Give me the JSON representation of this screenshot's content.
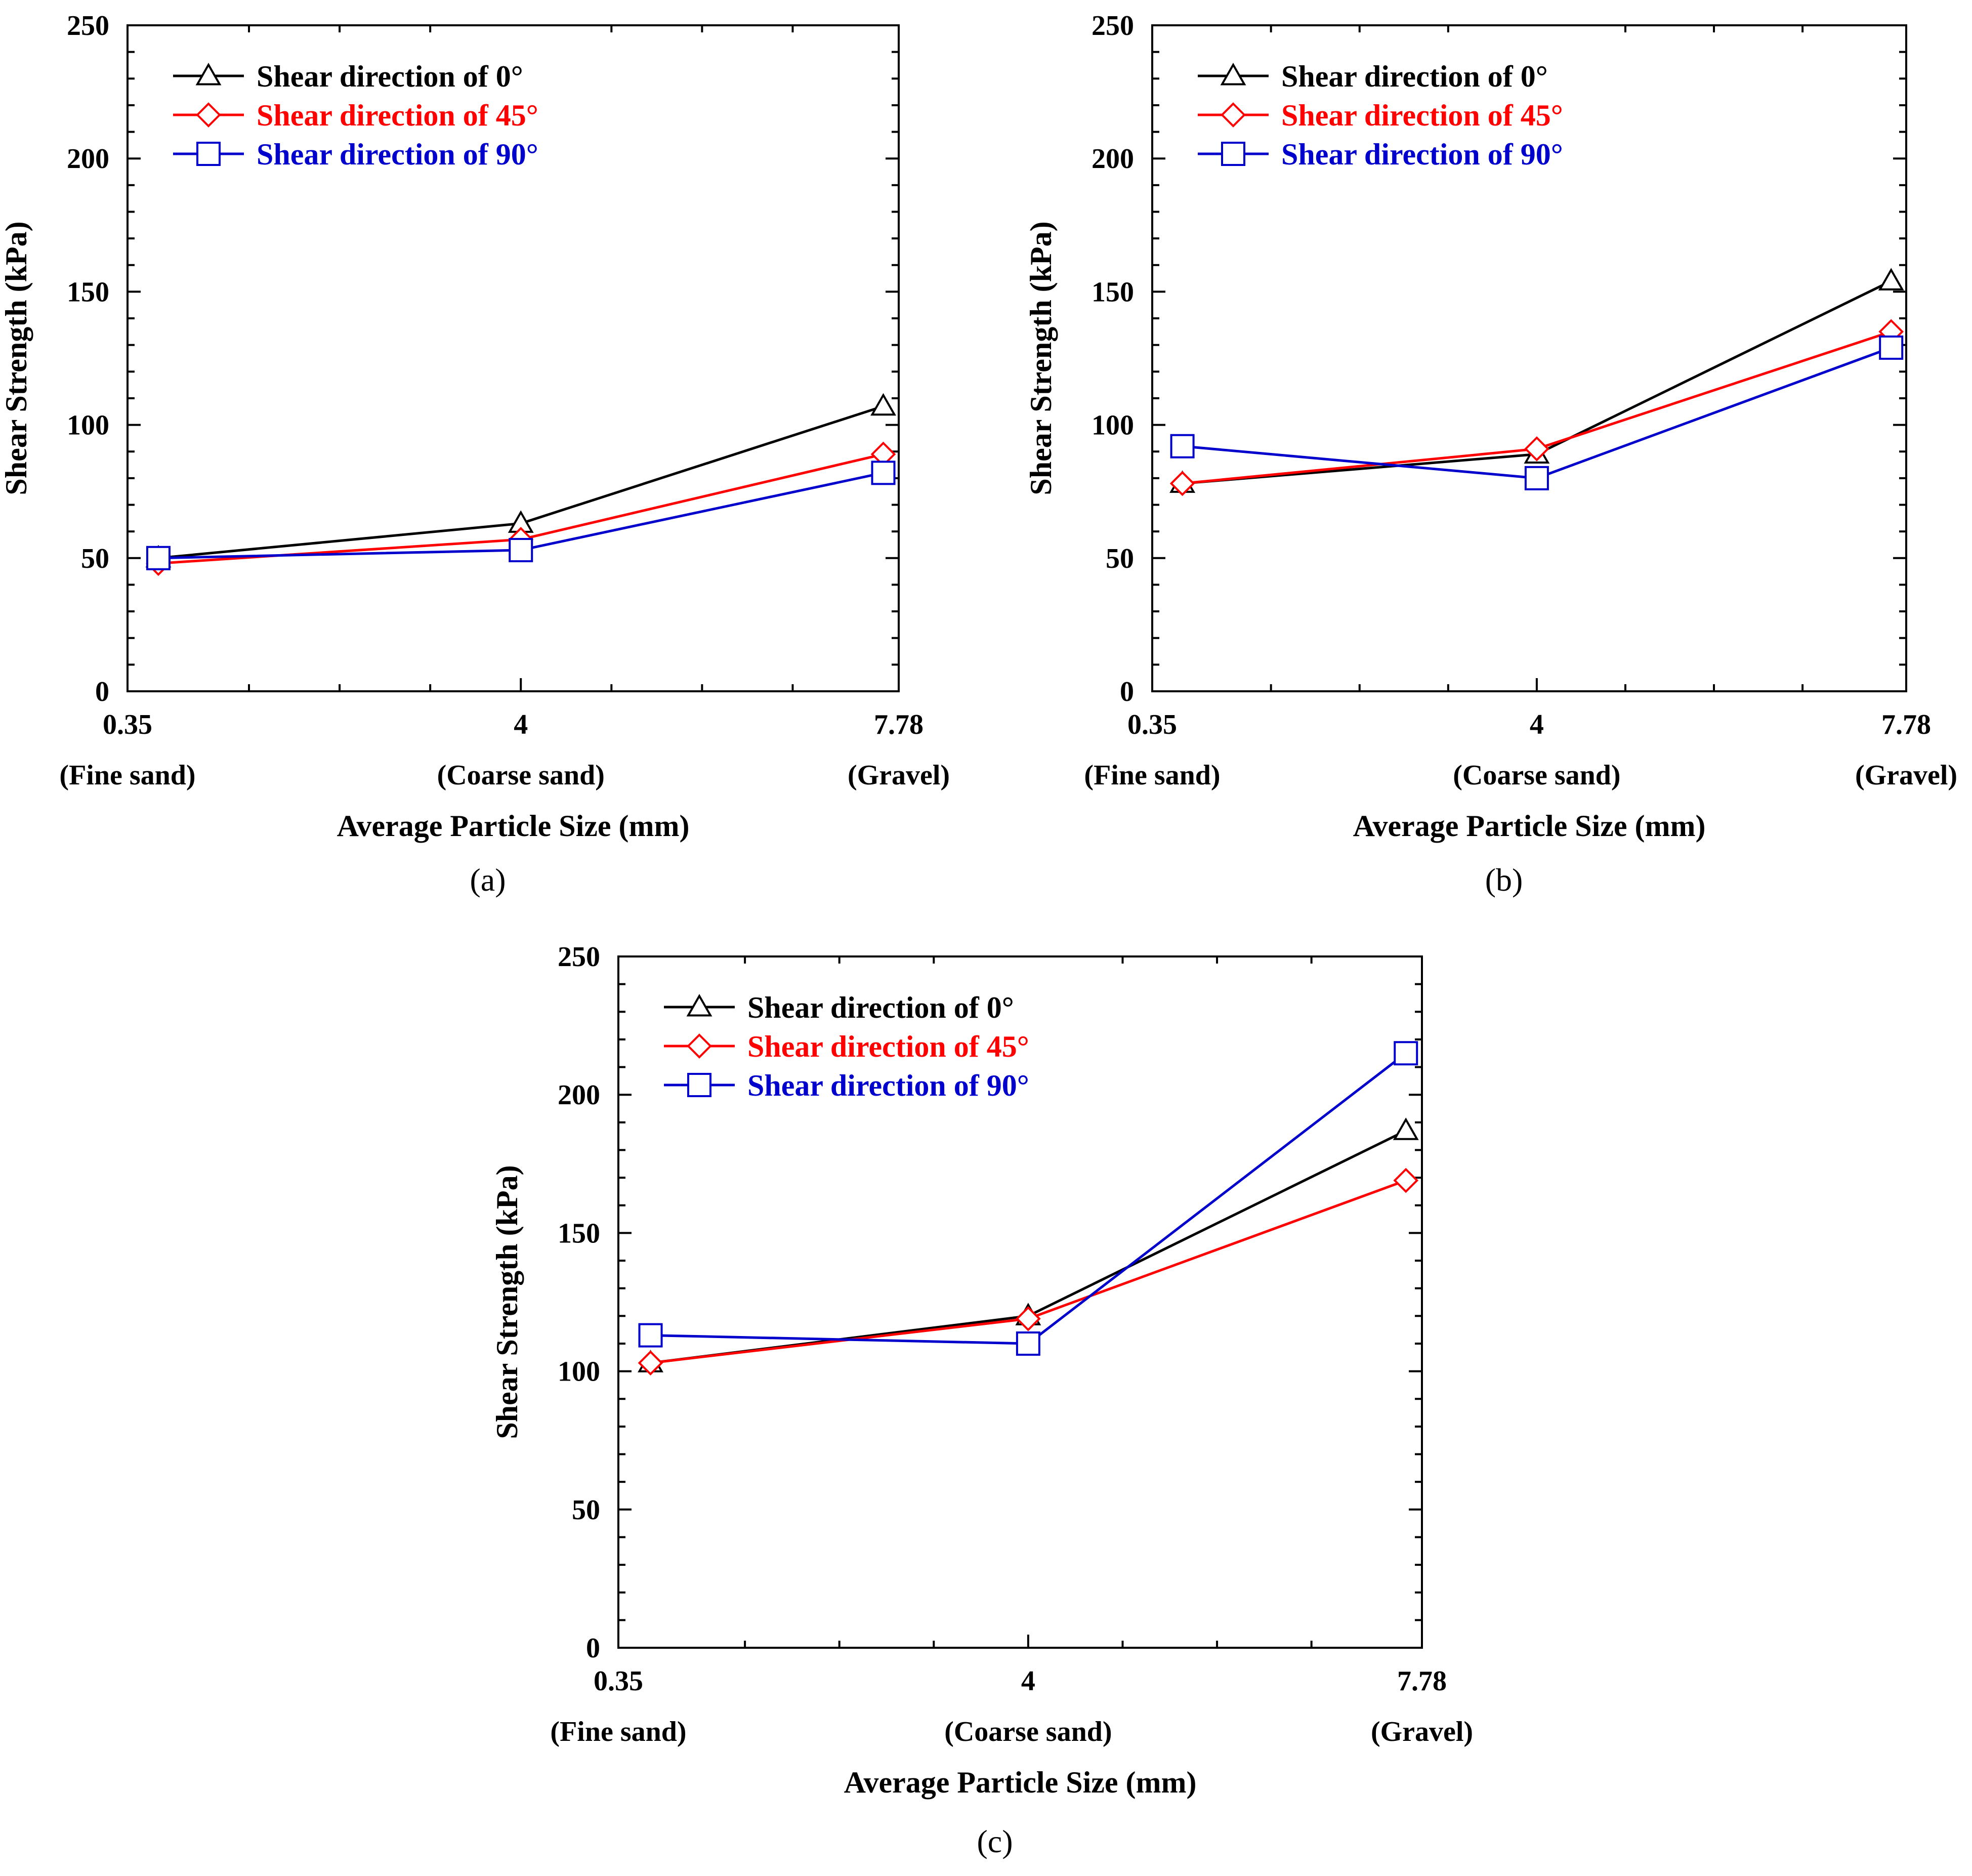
{
  "figure": {
    "panels": [
      "(a)",
      "(b)",
      "(c)"
    ]
  },
  "chart_data": [
    {
      "type": "line",
      "panel": "(a)",
      "title": "",
      "x_ticks": [
        "0.35",
        "4",
        "7.78"
      ],
      "x_tick_sublabels": [
        "(Fine sand)",
        "(Coarse sand)",
        "(Gravel)"
      ],
      "x": [
        0.35,
        4,
        7.78
      ],
      "xlabel": "Average Particle Size (mm)",
      "ylabel": "Shear Strength (kPa)",
      "ylim": [
        0,
        250
      ],
      "y_ticks": [
        0,
        50,
        100,
        150,
        200,
        250
      ],
      "series": [
        {
          "name": "Shear direction of 0°",
          "color": "#000000",
          "marker": "triangle",
          "values": [
            50,
            63,
            107
          ]
        },
        {
          "name": "Shear direction of 45°",
          "color": "#ff0000",
          "marker": "diamond",
          "values": [
            48,
            57,
            89
          ]
        },
        {
          "name": "Shear direction of 90°",
          "color": "#0000cc",
          "marker": "square",
          "values": [
            50,
            53,
            82
          ]
        }
      ]
    },
    {
      "type": "line",
      "panel": "(b)",
      "title": "",
      "x_ticks": [
        "0.35",
        "4",
        "7.78"
      ],
      "x_tick_sublabels": [
        "(Fine sand)",
        "(Coarse sand)",
        "(Gravel)"
      ],
      "x": [
        0.35,
        4,
        7.78
      ],
      "xlabel": "Average Particle Size (mm)",
      "ylabel": "Shear Strength (kPa)",
      "ylim": [
        0,
        250
      ],
      "y_ticks": [
        0,
        50,
        100,
        150,
        200,
        250
      ],
      "series": [
        {
          "name": "Shear direction of 0°",
          "color": "#000000",
          "marker": "triangle",
          "values": [
            78,
            89,
            154
          ]
        },
        {
          "name": "Shear direction of 45°",
          "color": "#ff0000",
          "marker": "diamond",
          "values": [
            78,
            91,
            135
          ]
        },
        {
          "name": "Shear direction of 90°",
          "color": "#0000cc",
          "marker": "square",
          "values": [
            92,
            80,
            129
          ]
        }
      ]
    },
    {
      "type": "line",
      "panel": "(c)",
      "title": "",
      "x_ticks": [
        "0.35",
        "4",
        "7.78"
      ],
      "x_tick_sublabels": [
        "(Fine sand)",
        "(Coarse sand)",
        "(Gravel)"
      ],
      "x": [
        0.35,
        4,
        7.78
      ],
      "xlabel": "Average Particle Size (mm)",
      "ylabel": "Shear Strength (kPa)",
      "ylim": [
        0,
        250
      ],
      "y_ticks": [
        0,
        50,
        100,
        150,
        200,
        250
      ],
      "series": [
        {
          "name": "Shear direction of 0°",
          "color": "#000000",
          "marker": "triangle",
          "values": [
            103,
            120,
            187
          ]
        },
        {
          "name": "Shear direction of 45°",
          "color": "#ff0000",
          "marker": "diamond",
          "values": [
            103,
            119,
            169
          ]
        },
        {
          "name": "Shear direction of 90°",
          "color": "#0000cc",
          "marker": "square",
          "values": [
            113,
            110,
            215
          ]
        }
      ]
    }
  ]
}
